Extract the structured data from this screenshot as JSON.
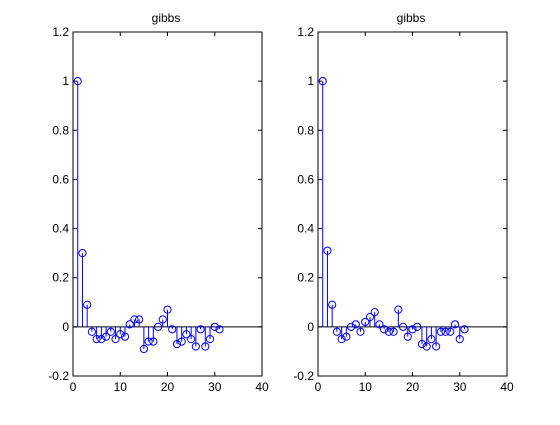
{
  "chart_data": [
    {
      "type": "stem",
      "title": "gibbs",
      "xlabel": "",
      "ylabel": "",
      "xlim": [
        0,
        40
      ],
      "ylim": [
        -0.2,
        1.2
      ],
      "xticks": [
        0,
        10,
        20,
        30,
        40
      ],
      "yticks": [
        -0.2,
        0,
        0.2,
        0.4,
        0.6,
        0.8,
        1,
        1.2
      ],
      "xtick_labels": [
        "0",
        "10",
        "20",
        "30",
        "40"
      ],
      "ytick_labels": [
        "-0.2",
        "0",
        "0.2",
        "0.4",
        "0.6",
        "0.8",
        "1",
        "1.2"
      ],
      "baseline": 0,
      "grid": false,
      "marker_color": "#0000ff",
      "x": [
        1,
        2,
        3,
        4,
        5,
        6,
        7,
        8,
        9,
        10,
        11,
        12,
        13,
        14,
        15,
        16,
        17,
        18,
        19,
        20,
        21,
        22,
        23,
        24,
        25,
        26,
        27,
        28,
        29,
        30,
        31
      ],
      "y": [
        1.0,
        0.3,
        0.09,
        -0.02,
        -0.05,
        -0.05,
        -0.04,
        -0.02,
        -0.05,
        -0.03,
        -0.04,
        0.01,
        0.03,
        0.03,
        -0.09,
        -0.06,
        -0.06,
        0.0,
        0.03,
        0.07,
        -0.01,
        -0.07,
        -0.06,
        -0.03,
        -0.05,
        -0.08,
        -0.01,
        -0.08,
        -0.05,
        0.0,
        -0.01
      ]
    },
    {
      "type": "stem",
      "title": "gibbs",
      "xlabel": "",
      "ylabel": "",
      "xlim": [
        0,
        40
      ],
      "ylim": [
        -0.2,
        1.2
      ],
      "xticks": [
        0,
        10,
        20,
        30,
        40
      ],
      "yticks": [
        -0.2,
        0,
        0.2,
        0.4,
        0.6,
        0.8,
        1,
        1.2
      ],
      "xtick_labels": [
        "0",
        "10",
        "20",
        "30",
        "40"
      ],
      "ytick_labels": [
        "-0.2",
        "0",
        "0.2",
        "0.4",
        "0.6",
        "0.8",
        "1",
        "1.2"
      ],
      "baseline": 0,
      "grid": false,
      "marker_color": "#0000ff",
      "x": [
        1,
        2,
        3,
        4,
        5,
        6,
        7,
        8,
        9,
        10,
        11,
        12,
        13,
        14,
        15,
        16,
        17,
        18,
        19,
        20,
        21,
        22,
        23,
        24,
        25,
        26,
        27,
        28,
        29,
        30,
        31
      ],
      "y": [
        1.0,
        0.31,
        0.09,
        -0.02,
        -0.05,
        -0.04,
        0.0,
        0.01,
        -0.02,
        0.02,
        0.04,
        0.06,
        0.01,
        -0.01,
        -0.02,
        -0.02,
        0.07,
        0.0,
        -0.04,
        -0.01,
        0.0,
        -0.07,
        -0.08,
        -0.05,
        -0.08,
        -0.02,
        -0.02,
        -0.02,
        0.01,
        -0.05,
        -0.01
      ]
    }
  ]
}
